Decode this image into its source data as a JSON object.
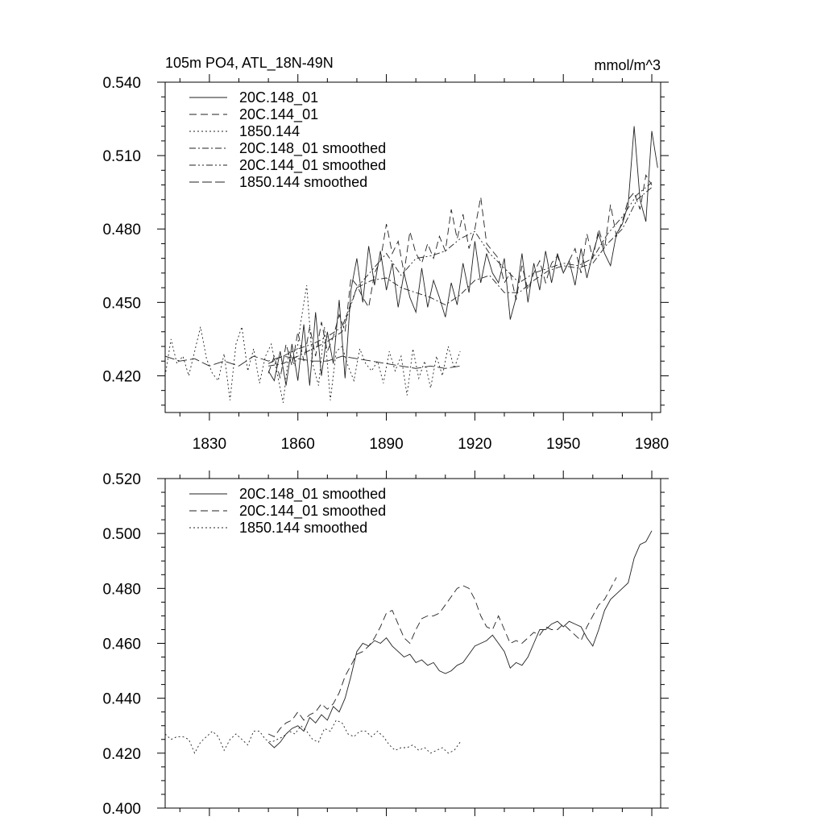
{
  "chart_data": [
    {
      "type": "line",
      "title": "105m PO4, ATL_18N-49N",
      "units": "mmol/m^3",
      "xlim": [
        1815,
        1983
      ],
      "ylim": [
        0.405,
        0.54
      ],
      "xticks": [
        1830,
        1860,
        1890,
        1920,
        1950,
        1980
      ],
      "xtick_labels": [
        "1830",
        "1860",
        "1890",
        "1920",
        "1950",
        "1980"
      ],
      "yticks": [
        0.42,
        0.45,
        0.48,
        0.51,
        0.54
      ],
      "ytick_labels": [
        "0.420",
        "0.450",
        "0.480",
        "0.510",
        "0.540"
      ],
      "legend": [
        "20C.148_01",
        "20C.144_01",
        "1850.144",
        "20C.148_01 smoothed",
        "20C.144_01 smoothed",
        "1850.144 smoothed"
      ],
      "series": [
        {
          "name": "20C.148_01",
          "dash": "solid",
          "x": [
            1850,
            1852,
            1854,
            1856,
            1858,
            1860,
            1862,
            1864,
            1866,
            1868,
            1870,
            1872,
            1874,
            1876,
            1878,
            1880,
            1882,
            1884,
            1886,
            1888,
            1890,
            1892,
            1894,
            1896,
            1898,
            1900,
            1902,
            1904,
            1906,
            1908,
            1910,
            1912,
            1914,
            1916,
            1918,
            1920,
            1922,
            1924,
            1926,
            1928,
            1930,
            1932,
            1934,
            1936,
            1938,
            1940,
            1942,
            1944,
            1946,
            1948,
            1950,
            1952,
            1954,
            1956,
            1958,
            1960,
            1962,
            1964,
            1966,
            1968,
            1970,
            1972,
            1974,
            1976,
            1978,
            1980,
            1982
          ],
          "y": [
            0.422,
            0.418,
            0.43,
            0.416,
            0.433,
            0.418,
            0.441,
            0.416,
            0.446,
            0.42,
            0.438,
            0.425,
            0.451,
            0.419,
            0.455,
            0.468,
            0.45,
            0.473,
            0.457,
            0.471,
            0.455,
            0.466,
            0.448,
            0.462,
            0.452,
            0.446,
            0.464,
            0.448,
            0.459,
            0.452,
            0.444,
            0.458,
            0.449,
            0.466,
            0.454,
            0.475,
            0.458,
            0.47,
            0.462,
            0.458,
            0.468,
            0.443,
            0.452,
            0.47,
            0.45,
            0.466,
            0.455,
            0.471,
            0.458,
            0.47,
            0.462,
            0.467,
            0.457,
            0.472,
            0.46,
            0.47,
            0.478,
            0.47,
            0.465,
            0.478,
            0.482,
            0.49,
            0.522,
            0.492,
            0.483,
            0.52,
            0.505
          ]
        },
        {
          "name": "20C.144_01",
          "dash": "dash",
          "x": [
            1850,
            1852,
            1854,
            1856,
            1858,
            1860,
            1862,
            1864,
            1866,
            1868,
            1870,
            1872,
            1874,
            1876,
            1878,
            1880,
            1882,
            1884,
            1886,
            1888,
            1890,
            1892,
            1894,
            1896,
            1898,
            1900,
            1902,
            1904,
            1906,
            1908,
            1910,
            1912,
            1914,
            1916,
            1918,
            1920,
            1922,
            1924,
            1926,
            1928,
            1930,
            1932,
            1934,
            1936,
            1938,
            1940,
            1942,
            1944,
            1946,
            1948,
            1950,
            1952,
            1954,
            1956,
            1958,
            1960,
            1962,
            1964,
            1966,
            1968,
            1970,
            1972,
            1974,
            1976,
            1978,
            1980
          ],
          "y": [
            0.421,
            0.428,
            0.419,
            0.433,
            0.424,
            0.438,
            0.426,
            0.44,
            0.428,
            0.442,
            0.43,
            0.436,
            0.445,
            0.438,
            0.46,
            0.457,
            0.452,
            0.448,
            0.462,
            0.467,
            0.482,
            0.47,
            0.475,
            0.462,
            0.479,
            0.47,
            0.466,
            0.474,
            0.468,
            0.477,
            0.471,
            0.488,
            0.476,
            0.486,
            0.472,
            0.48,
            0.493,
            0.474,
            0.471,
            0.468,
            0.458,
            0.462,
            0.451,
            0.465,
            0.455,
            0.462,
            0.467,
            0.458,
            0.466,
            0.469,
            0.462,
            0.467,
            0.472,
            0.462,
            0.478,
            0.468,
            0.48,
            0.472,
            0.49,
            0.477,
            0.483,
            0.492,
            0.495,
            0.488,
            0.502,
            0.498
          ]
        },
        {
          "name": "1850.144",
          "dash": "dot",
          "x": [
            1815,
            1817,
            1819,
            1821,
            1823,
            1825,
            1827,
            1829,
            1831,
            1833,
            1835,
            1837,
            1839,
            1841,
            1843,
            1845,
            1847,
            1849,
            1851,
            1853,
            1855,
            1857,
            1859,
            1861,
            1863,
            1865,
            1867,
            1869,
            1871,
            1873,
            1875,
            1877,
            1879,
            1881,
            1883,
            1885,
            1887,
            1889,
            1891,
            1893,
            1895,
            1897,
            1899,
            1901,
            1903,
            1905,
            1907,
            1909,
            1911,
            1913,
            1915
          ],
          "y": [
            0.42,
            0.435,
            0.425,
            0.428,
            0.42,
            0.43,
            0.44,
            0.427,
            0.421,
            0.418,
            0.429,
            0.41,
            0.433,
            0.44,
            0.422,
            0.431,
            0.417,
            0.428,
            0.433,
            0.421,
            0.409,
            0.43,
            0.424,
            0.442,
            0.457,
            0.425,
            0.416,
            0.44,
            0.41,
            0.43,
            0.432,
            0.424,
            0.418,
            0.431,
            0.425,
            0.422,
            0.426,
            0.417,
            0.43,
            0.422,
            0.428,
            0.412,
            0.431,
            0.419,
            0.426,
            0.415,
            0.428,
            0.42,
            0.432,
            0.423,
            0.43
          ]
        },
        {
          "name": "20C.148_01 smoothed",
          "dash": "dashdot",
          "x": [
            1850,
            1855,
            1860,
            1865,
            1870,
            1875,
            1880,
            1885,
            1890,
            1895,
            1900,
            1905,
            1910,
            1915,
            1920,
            1925,
            1930,
            1935,
            1940,
            1945,
            1950,
            1955,
            1960,
            1965,
            1970,
            1975,
            1980
          ],
          "y": [
            0.424,
            0.425,
            0.428,
            0.431,
            0.434,
            0.438,
            0.456,
            0.459,
            0.46,
            0.456,
            0.454,
            0.452,
            0.449,
            0.453,
            0.459,
            0.461,
            0.454,
            0.454,
            0.459,
            0.463,
            0.465,
            0.464,
            0.466,
            0.474,
            0.48,
            0.492,
            0.497
          ]
        },
        {
          "name": "20C.144_01 smoothed",
          "dash": "dashdotdot",
          "x": [
            1850,
            1855,
            1860,
            1865,
            1870,
            1875,
            1880,
            1885,
            1890,
            1895,
            1900,
            1905,
            1910,
            1915,
            1920,
            1925,
            1930,
            1935,
            1940,
            1945,
            1950,
            1955,
            1960,
            1965,
            1970,
            1975,
            1980
          ],
          "y": [
            0.425,
            0.428,
            0.431,
            0.433,
            0.436,
            0.44,
            0.456,
            0.463,
            0.47,
            0.461,
            0.468,
            0.469,
            0.471,
            0.476,
            0.479,
            0.47,
            0.464,
            0.458,
            0.462,
            0.464,
            0.466,
            0.465,
            0.468,
            0.478,
            0.485,
            0.494,
            0.499
          ]
        },
        {
          "name": "1850.144 smoothed",
          "dash": "longdash",
          "x": [
            1815,
            1820,
            1825,
            1830,
            1835,
            1840,
            1845,
            1850,
            1855,
            1860,
            1865,
            1870,
            1875,
            1880,
            1885,
            1890,
            1895,
            1900,
            1905,
            1910,
            1915
          ],
          "y": [
            0.428,
            0.426,
            0.427,
            0.424,
            0.426,
            0.424,
            0.428,
            0.426,
            0.428,
            0.427,
            0.426,
            0.426,
            0.428,
            0.427,
            0.426,
            0.425,
            0.424,
            0.423,
            0.424,
            0.423,
            0.424
          ]
        }
      ]
    },
    {
      "type": "line",
      "title": "",
      "xlim": [
        1815,
        1983
      ],
      "ylim": [
        0.4,
        0.52
      ],
      "xticks": [
        1830,
        1860,
        1890,
        1920,
        1950,
        1980
      ],
      "yticks": [
        0.4,
        0.42,
        0.44,
        0.46,
        0.48,
        0.5,
        0.52
      ],
      "ytick_labels": [
        "0.400",
        "0.420",
        "0.440",
        "0.460",
        "0.480",
        "0.500",
        "0.520"
      ],
      "legend": [
        "20C.148_01 smoothed",
        "20C.144_01 smoothed",
        "1850.144 smoothed"
      ],
      "series": [
        {
          "name": "20C.148_01 smoothed",
          "dash": "solid",
          "x": [
            1850,
            1852,
            1854,
            1856,
            1858,
            1860,
            1862,
            1864,
            1866,
            1868,
            1870,
            1872,
            1874,
            1876,
            1878,
            1880,
            1882,
            1884,
            1886,
            1888,
            1890,
            1892,
            1894,
            1896,
            1898,
            1900,
            1902,
            1904,
            1906,
            1908,
            1910,
            1912,
            1914,
            1916,
            1918,
            1920,
            1922,
            1924,
            1926,
            1928,
            1930,
            1932,
            1934,
            1936,
            1938,
            1940,
            1942,
            1944,
            1946,
            1948,
            1950,
            1952,
            1954,
            1956,
            1958,
            1960,
            1962,
            1964,
            1966,
            1968,
            1970,
            1972,
            1974,
            1976,
            1978,
            1980
          ],
          "y": [
            0.424,
            0.422,
            0.424,
            0.427,
            0.429,
            0.43,
            0.428,
            0.433,
            0.431,
            0.434,
            0.432,
            0.437,
            0.435,
            0.44,
            0.448,
            0.457,
            0.46,
            0.459,
            0.461,
            0.46,
            0.462,
            0.459,
            0.457,
            0.455,
            0.456,
            0.453,
            0.454,
            0.452,
            0.453,
            0.45,
            0.449,
            0.45,
            0.452,
            0.453,
            0.456,
            0.459,
            0.46,
            0.461,
            0.463,
            0.46,
            0.457,
            0.451,
            0.453,
            0.452,
            0.455,
            0.46,
            0.465,
            0.465,
            0.467,
            0.468,
            0.466,
            0.468,
            0.467,
            0.466,
            0.462,
            0.459,
            0.465,
            0.472,
            0.476,
            0.478,
            0.48,
            0.482,
            0.491,
            0.496,
            0.497,
            0.501
          ]
        },
        {
          "name": "20C.144_01 smoothed",
          "dash": "dash",
          "x": [
            1850,
            1852,
            1854,
            1856,
            1858,
            1860,
            1862,
            1864,
            1866,
            1868,
            1870,
            1872,
            1874,
            1876,
            1878,
            1880,
            1882,
            1884,
            1886,
            1888,
            1890,
            1892,
            1894,
            1896,
            1898,
            1900,
            1902,
            1904,
            1906,
            1908,
            1910,
            1912,
            1914,
            1916,
            1918,
            1920,
            1922,
            1924,
            1926,
            1928,
            1930,
            1932,
            1934,
            1936,
            1938,
            1940,
            1942,
            1944,
            1946,
            1948,
            1950,
            1952,
            1954,
            1956,
            1958,
            1960,
            1962,
            1964,
            1966,
            1968
          ],
          "y": [
            0.427,
            0.426,
            0.429,
            0.431,
            0.432,
            0.435,
            0.432,
            0.434,
            0.435,
            0.438,
            0.436,
            0.438,
            0.442,
            0.448,
            0.452,
            0.456,
            0.457,
            0.459,
            0.462,
            0.466,
            0.471,
            0.472,
            0.467,
            0.462,
            0.46,
            0.465,
            0.469,
            0.47,
            0.47,
            0.471,
            0.474,
            0.477,
            0.48,
            0.481,
            0.48,
            0.476,
            0.47,
            0.466,
            0.465,
            0.47,
            0.465,
            0.46,
            0.461,
            0.46,
            0.462,
            0.464,
            0.463,
            0.466,
            0.465,
            0.465,
            0.467,
            0.465,
            0.463,
            0.461,
            0.466,
            0.47,
            0.474,
            0.476,
            0.48,
            0.484
          ]
        },
        {
          "name": "1850.144 smoothed",
          "dash": "dot",
          "x": [
            1815,
            1817,
            1819,
            1821,
            1823,
            1825,
            1827,
            1829,
            1831,
            1833,
            1835,
            1837,
            1839,
            1841,
            1843,
            1845,
            1847,
            1849,
            1851,
            1853,
            1855,
            1857,
            1859,
            1861,
            1863,
            1865,
            1867,
            1869,
            1871,
            1873,
            1875,
            1877,
            1879,
            1881,
            1883,
            1885,
            1887,
            1889,
            1891,
            1893,
            1895,
            1897,
            1899,
            1901,
            1903,
            1905,
            1907,
            1909,
            1911,
            1913,
            1915
          ],
          "y": [
            0.427,
            0.425,
            0.426,
            0.426,
            0.425,
            0.42,
            0.424,
            0.426,
            0.428,
            0.426,
            0.421,
            0.425,
            0.427,
            0.425,
            0.423,
            0.428,
            0.428,
            0.425,
            0.424,
            0.425,
            0.426,
            0.428,
            0.427,
            0.43,
            0.428,
            0.425,
            0.424,
            0.429,
            0.428,
            0.432,
            0.431,
            0.427,
            0.426,
            0.428,
            0.428,
            0.426,
            0.428,
            0.426,
            0.423,
            0.421,
            0.422,
            0.422,
            0.423,
            0.421,
            0.422,
            0.42,
            0.421,
            0.422,
            0.42,
            0.421,
            0.424
          ]
        }
      ]
    }
  ]
}
